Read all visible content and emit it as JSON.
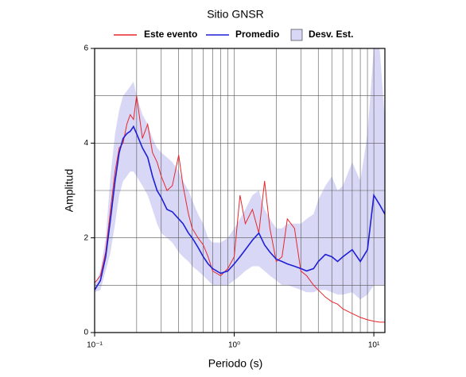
{
  "chart_data": {
    "type": "line",
    "title": "Sitio GNSR",
    "xlabel": "Periodo (s)",
    "ylabel": "Amplitud",
    "xscale": "log",
    "xlim": [
      0.1,
      12
    ],
    "ylim": [
      0,
      6
    ],
    "xticks": [
      {
        "value": 0.1,
        "label": "10⁻¹"
      },
      {
        "value": 1,
        "label": "10⁰"
      },
      {
        "value": 10,
        "label": "10¹"
      }
    ],
    "xminor": [
      0.2,
      0.3,
      0.4,
      0.5,
      0.6,
      0.7,
      0.8,
      0.9,
      2,
      3,
      4,
      5,
      6,
      7,
      8,
      9
    ],
    "yticks": [
      0,
      2,
      4,
      6
    ],
    "yminor": [
      1,
      3,
      5
    ],
    "grid": true,
    "x": [
      0.1,
      0.11,
      0.12,
      0.13,
      0.14,
      0.15,
      0.16,
      0.17,
      0.18,
      0.19,
      0.2,
      0.22,
      0.24,
      0.26,
      0.28,
      0.3,
      0.33,
      0.36,
      0.4,
      0.43,
      0.47,
      0.5,
      0.55,
      0.6,
      0.65,
      0.7,
      0.8,
      0.9,
      1.0,
      1.1,
      1.2,
      1.35,
      1.5,
      1.65,
      1.8,
      2.0,
      2.2,
      2.4,
      2.7,
      3.0,
      3.3,
      3.7,
      4.0,
      4.5,
      5.0,
      5.5,
      6.0,
      7.0,
      8.0,
      9.0,
      10,
      11,
      12
    ],
    "series": [
      {
        "name": "Desv. Est.",
        "color": "#d8d8f6",
        "kind": "band",
        "upper": [
          1.0,
          1.3,
          2.0,
          3.3,
          4.2,
          4.7,
          5.0,
          5.1,
          5.2,
          5.3,
          5.0,
          4.6,
          4.4,
          4.1,
          3.9,
          3.8,
          3.7,
          3.6,
          3.4,
          3.2,
          3.0,
          2.8,
          2.5,
          2.3,
          2.0,
          1.9,
          1.9,
          2.0,
          2.2,
          2.4,
          2.6,
          2.9,
          3.0,
          2.6,
          2.4,
          2.2,
          2.2,
          2.3,
          2.3,
          2.3,
          2.4,
          2.5,
          2.8,
          3.1,
          3.3,
          3.0,
          3.1,
          3.6,
          3.2,
          4.2,
          6.0,
          6.0,
          4.5
        ],
        "lower": [
          0.85,
          0.9,
          1.3,
          1.7,
          2.3,
          2.9,
          3.2,
          3.3,
          3.4,
          3.4,
          3.3,
          3.1,
          2.9,
          2.6,
          2.3,
          2.1,
          2.0,
          1.9,
          1.7,
          1.6,
          1.5,
          1.4,
          1.3,
          1.2,
          1.1,
          1.0,
          1.0,
          1.0,
          1.1,
          1.2,
          1.3,
          1.4,
          1.4,
          1.3,
          1.2,
          1.1,
          1.0,
          1.0,
          0.95,
          0.9,
          0.85,
          0.85,
          0.9,
          0.9,
          0.85,
          0.8,
          0.8,
          0.85,
          0.7,
          0.8,
          1.0,
          1.0,
          1.0
        ]
      },
      {
        "name": "Este evento",
        "color": "#e8262b",
        "kind": "line",
        "values": [
          1.05,
          1.2,
          1.7,
          2.6,
          3.4,
          3.9,
          4.0,
          4.4,
          4.6,
          4.5,
          5.0,
          4.1,
          4.4,
          3.8,
          3.6,
          3.3,
          3.0,
          3.1,
          3.75,
          3.1,
          2.5,
          2.2,
          2.0,
          1.85,
          1.6,
          1.3,
          1.2,
          1.35,
          1.6,
          2.9,
          2.3,
          2.6,
          2.1,
          3.2,
          2.2,
          1.5,
          1.6,
          2.4,
          2.2,
          1.3,
          1.2,
          1.0,
          0.9,
          0.75,
          0.65,
          0.6,
          0.5,
          0.4,
          0.32,
          0.27,
          0.24,
          0.22,
          0.22
        ]
      },
      {
        "name": "Promedio",
        "color": "#1f1fd6",
        "kind": "line",
        "values": [
          0.9,
          1.1,
          1.6,
          2.4,
          3.2,
          3.8,
          4.1,
          4.2,
          4.25,
          4.35,
          4.2,
          3.9,
          3.7,
          3.3,
          3.0,
          2.85,
          2.6,
          2.55,
          2.4,
          2.3,
          2.1,
          2.0,
          1.8,
          1.6,
          1.45,
          1.35,
          1.25,
          1.3,
          1.45,
          1.6,
          1.75,
          1.95,
          2.1,
          1.85,
          1.7,
          1.55,
          1.5,
          1.45,
          1.4,
          1.35,
          1.3,
          1.35,
          1.5,
          1.65,
          1.6,
          1.5,
          1.6,
          1.75,
          1.5,
          1.75,
          2.9,
          2.7,
          2.5
        ]
      }
    ]
  }
}
